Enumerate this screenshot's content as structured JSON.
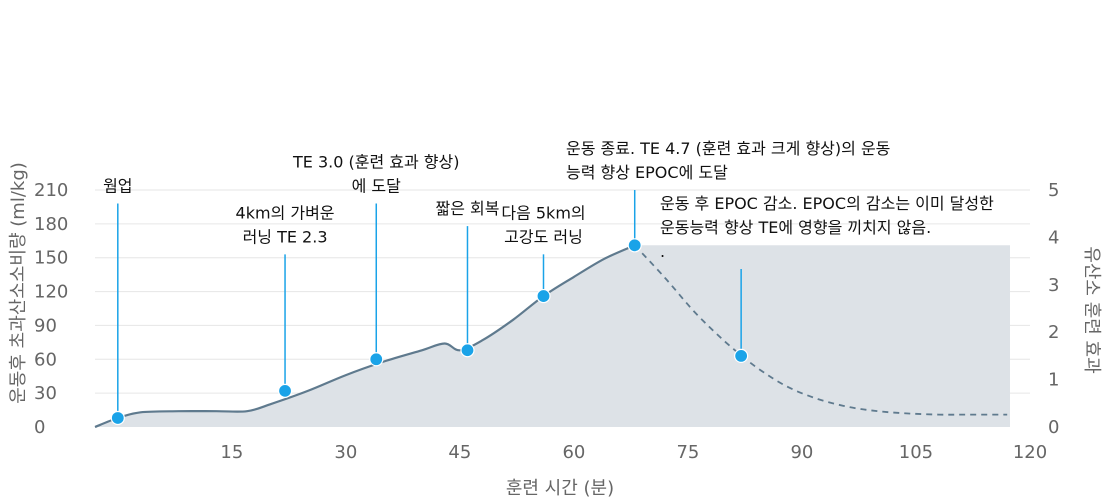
{
  "chart_data": {
    "type": "area",
    "xlabel": "훈련 시간 (분)",
    "ylabel": "운동후 초과산소소비량 (ml/kg)",
    "y2label": "유산소 훈련 효과",
    "xlim": [
      -3,
      120
    ],
    "ylim": [
      0,
      210
    ],
    "y2lim": [
      0,
      5
    ],
    "x_ticks": [
      "15",
      "30",
      "45",
      "60",
      "75",
      "90",
      "105",
      "120"
    ],
    "y_ticks": [
      "0",
      "30",
      "60",
      "90",
      "120",
      "150",
      "180",
      "210"
    ],
    "y2_ticks": [
      "0",
      "1",
      "2",
      "3",
      "4",
      "5"
    ],
    "grid": "horizontal",
    "colors": {
      "line": "#5f7a8e",
      "fill": "#dde2e7",
      "marker": "#1aa3e8",
      "guide": "#1aa3e8"
    },
    "series": [
      {
        "style": "solid",
        "x": [
          -3,
          0,
          3,
          8,
          13,
          17,
          20,
          25,
          30,
          35,
          40,
          43,
          45,
          48,
          52,
          56,
          60,
          64,
          68
        ],
        "y": [
          0,
          8,
          13,
          14,
          14,
          14,
          20,
          32,
          46,
          58,
          68,
          74,
          68,
          77,
          95,
          116,
          133,
          149,
          161
        ]
      },
      {
        "style": "dashed",
        "x": [
          68,
          72,
          76,
          80,
          84,
          88,
          92,
          96,
          100,
          104,
          108,
          112,
          117
        ],
        "y": [
          161,
          132,
          101,
          75,
          53,
          36,
          25,
          18,
          14,
          12,
          11,
          11,
          11
        ]
      }
    ],
    "annotations": [
      {
        "x": 0,
        "y": 8,
        "text_y": 198,
        "lines": [
          "웜업"
        ]
      },
      {
        "x": 22,
        "y": 32,
        "text_y": 153,
        "lines": [
          "4km의 가벼운",
          "러닝 TE 2.3"
        ]
      },
      {
        "x": 34,
        "y": 60,
        "text_y": 198,
        "lines": [
          "TE 3.0 (훈련 효과 향상)",
          "에 도달"
        ]
      },
      {
        "x": 46,
        "y": 68,
        "text_y": 178,
        "lines": [
          "짧은 회복"
        ]
      },
      {
        "x": 56,
        "y": 116,
        "text_y": 153,
        "lines": [
          "다음 5km의",
          "고강도 러닝"
        ]
      },
      {
        "x": 68,
        "y": 161,
        "text_y": 210,
        "lines": [
          "운동 종료. TE 4.7 (훈련 효과 크게 향상)의 운동",
          "능력 향상 EPOC에 도달"
        ]
      },
      {
        "x": 82,
        "y": 63,
        "text_y": 140,
        "lines": [
          "운동 후 EPOC 감소. EPOC의 감소는 이미 달성한",
          "운동능력 향상 TE에 영향을 끼치지 않음.",
          "."
        ]
      }
    ]
  }
}
